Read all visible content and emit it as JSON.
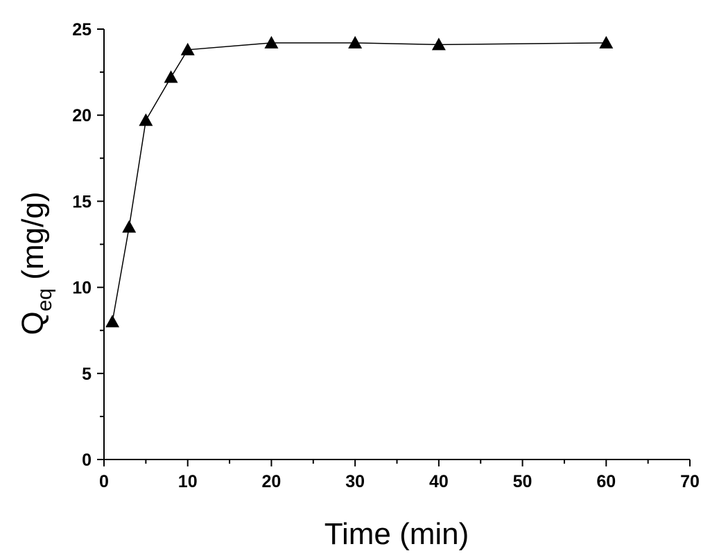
{
  "chart_data": {
    "type": "line",
    "xlabel": "Time (min)",
    "ylabel": {
      "main": "Q",
      "subscript": "eq",
      "rest": " (mg/g)"
    },
    "series": [
      {
        "color": "#000000",
        "marker": "triangle",
        "x": [
          1,
          3,
          5,
          8,
          10,
          20,
          30,
          40,
          60
        ],
        "values": [
          8.0,
          13.5,
          19.7,
          22.2,
          23.8,
          24.2,
          24.2,
          24.1,
          24.2
        ]
      }
    ],
    "xlim": [
      0,
      70
    ],
    "xticks": [
      0,
      10,
      20,
      30,
      40,
      50,
      60,
      70
    ],
    "ylim": [
      0,
      25
    ],
    "yticks": [
      0,
      5,
      10,
      15,
      20,
      25
    ],
    "grid": false
  }
}
